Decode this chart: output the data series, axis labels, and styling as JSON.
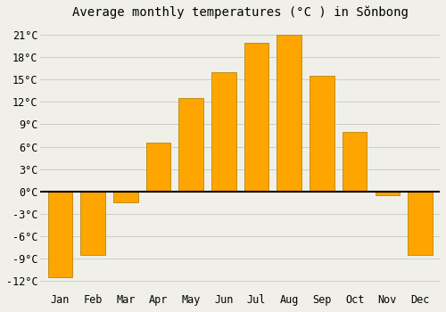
{
  "title": "Average monthly temperatures (°C ) in Sŏnbong",
  "months": [
    "Jan",
    "Feb",
    "Mar",
    "Apr",
    "May",
    "Jun",
    "Jul",
    "Aug",
    "Sep",
    "Oct",
    "Nov",
    "Dec"
  ],
  "values": [
    -11.5,
    -8.5,
    -1.5,
    6.5,
    12.5,
    16.0,
    20.0,
    21.0,
    15.5,
    8.0,
    -0.5,
    -8.5
  ],
  "bar_color": "#FFA500",
  "bar_edge_color": "#B8860B",
  "background_color": "#F0F0E8",
  "grid_color": "#CCCCCC",
  "yticks": [
    -12,
    -9,
    -6,
    -3,
    0,
    3,
    6,
    9,
    12,
    15,
    18,
    21
  ],
  "ylim": [
    -13.5,
    22.5
  ],
  "title_fontsize": 10,
  "tick_fontsize": 8.5
}
